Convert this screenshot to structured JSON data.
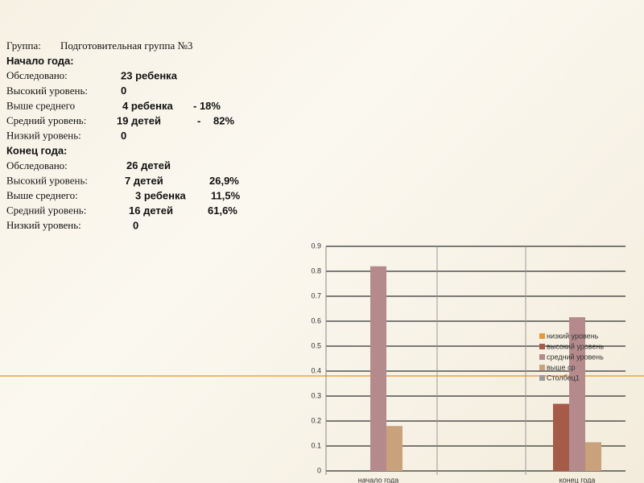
{
  "lines": [
    [
      "Группа:",
      "Подготовительная группа №3"
    ],
    [
      "Начало года:"
    ],
    [
      "Обследовано:",
      "23 ребенка"
    ],
    [
      "Высокий уровень:",
      "0"
    ],
    [
      "Выше среднего",
      "4 ребенка",
      "- 18%"
    ],
    [
      "Средний уровень:",
      "19 детей",
      "-",
      "82%"
    ],
    [
      "Низкий уровень:",
      "0"
    ],
    [
      "Конец года:"
    ],
    [
      "Обследовано:",
      "26 детей"
    ],
    [
      "Высокий уровень:",
      "7 детей",
      "26,9%"
    ],
    [
      "Выше среднего:",
      "3 ребенка",
      "11,5%"
    ],
    [
      "Средний уровень:",
      "16 детей",
      "61,6%"
    ],
    [
      "Низкий уровень:",
      "0"
    ]
  ],
  "chart_data": {
    "type": "bar",
    "categories": [
      "начало года",
      "конец года"
    ],
    "series": [
      {
        "name": "низкий уровень",
        "color": "#e59a3a",
        "values": [
          0,
          0
        ]
      },
      {
        "name": "высокий уровень",
        "color": "#a65a48",
        "values": [
          0,
          0.269
        ]
      },
      {
        "name": "средний уровень",
        "color": "#b48a8c",
        "values": [
          0.82,
          0.616
        ]
      },
      {
        "name": "выше ср",
        "color": "#c9a27c",
        "values": [
          0.18,
          0.115
        ]
      },
      {
        "name": "Столбец1",
        "color": "#9a9a9a",
        "values": [
          null,
          null
        ]
      }
    ],
    "ylim": [
      0,
      0.9
    ],
    "yticks": [
      0,
      0.1,
      0.2,
      0.3,
      0.4,
      0.5,
      0.6,
      0.7,
      0.8,
      0.9
    ],
    "grid": true
  }
}
